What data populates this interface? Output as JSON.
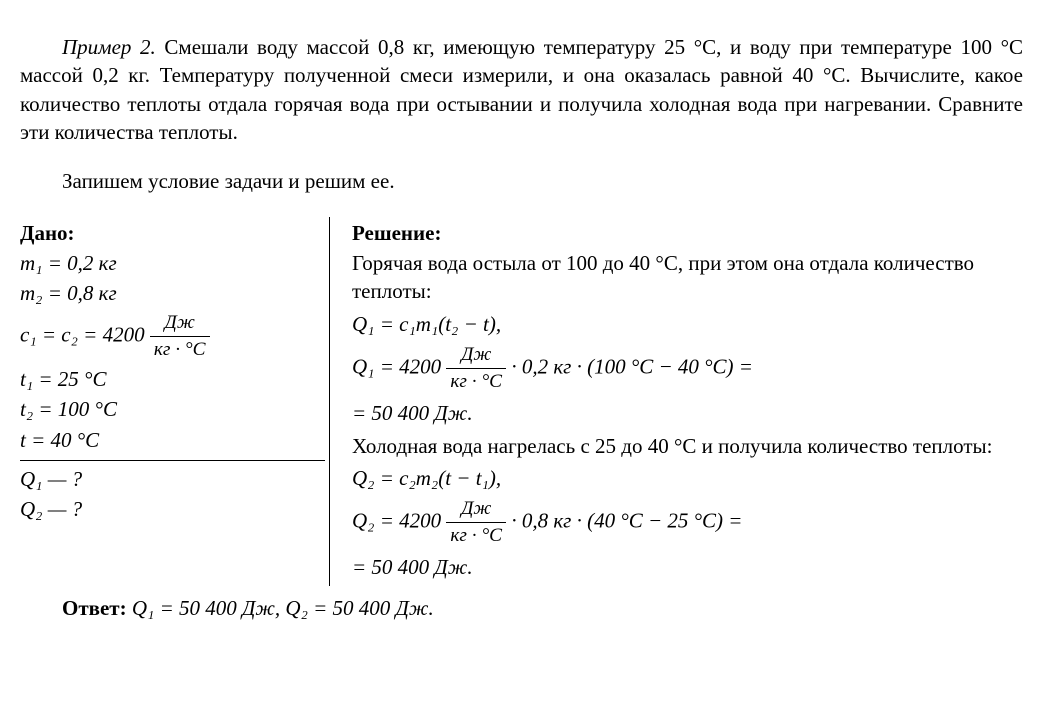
{
  "problem": {
    "label": "Пример 2.",
    "text1": " Смешали воду массой 0,8 кг, имеющую температуру 25 °С, и воду при температуре 100 °С массой 0,2 кг. Температуру полученной смеси измерили, и она оказалась равной 40 °С. Вычислите, какое количество теплоты отдала горячая вода при остывании и получила холодная вода при нагревании. Сравните эти количества теплоты.",
    "text2": "Запишем условие задачи и решим ее."
  },
  "given": {
    "label": "Дано:",
    "m1": "m₁ = 0,2 кг",
    "m2": "m₂ = 0,8 кг",
    "c_lhs": "c₁ = c₂ = 4200 ",
    "c_num": "Дж",
    "c_den": "кг · °С",
    "t1": "t₁ = 25 °С",
    "t2": "t₂ = 100 °С",
    "t": "t = 40 °С",
    "q1": "Q₁ — ?",
    "q2": "Q₂ — ?"
  },
  "solution": {
    "label": "Решение:",
    "s1": "Горячая вода остыла от 100 до 40 °С, при этом она отдала количество теплоты:",
    "eq1": "Q₁ = c₁m₁(t₂ − t),",
    "eq2a": "Q₁ = 4200 ",
    "eq2b": " · 0,2 кг · (100 °С − 40 °С) =",
    "eq3": "= 50 400 Дж.",
    "s2": "Холодная вода нагрелась с 25 до 40 °С и получила количество теплоты:",
    "eq4": "Q₂ = c₂m₂(t − t₁),",
    "eq5a": "Q₂ = 4200 ",
    "eq5b": " · 0,8 кг · (40 °С − 25 °С) =",
    "eq6": "= 50 400 Дж."
  },
  "answer": {
    "label": "Ответ:",
    "text": " Q₁ = 50 400 Дж, Q₂ = 50 400 Дж."
  },
  "style": {
    "unit_num": "Дж",
    "unit_den": "кг · °С"
  }
}
